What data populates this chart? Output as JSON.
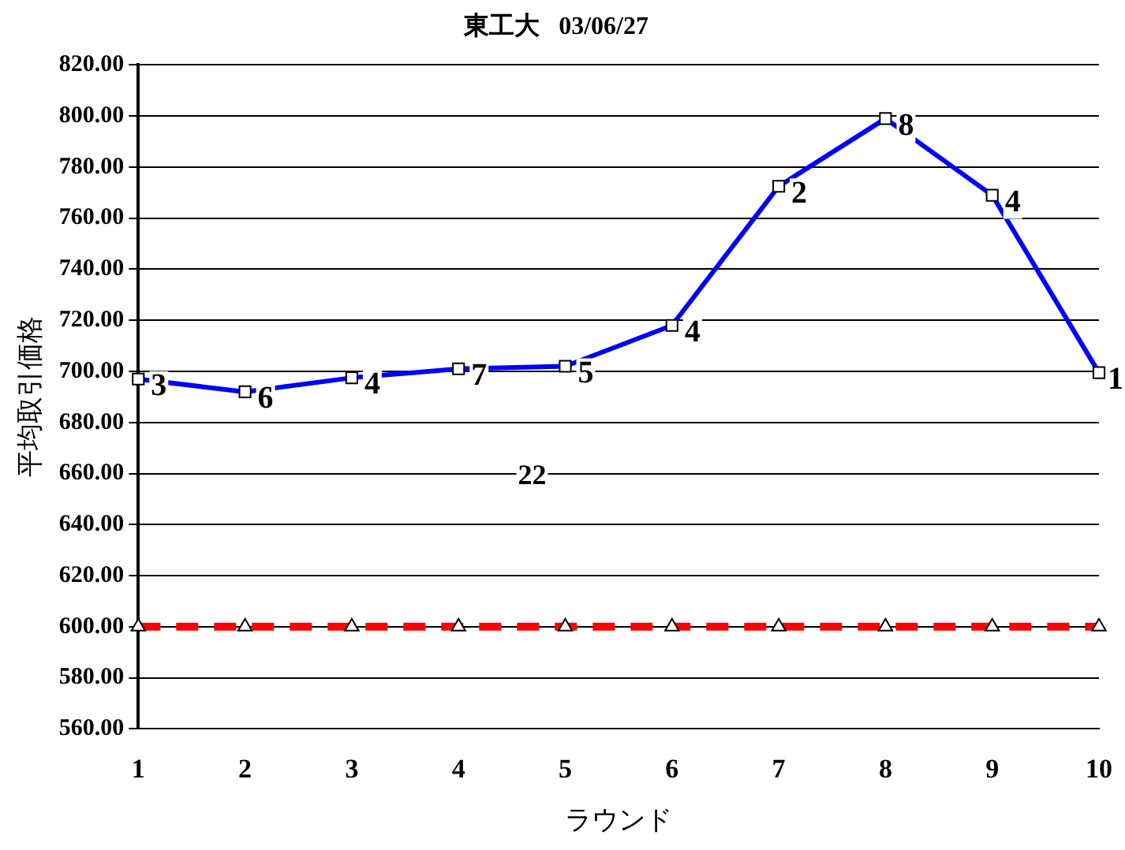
{
  "chart_data": {
    "type": "line",
    "title": "東工大   03/06/27",
    "xlabel": "ラウンド",
    "ylabel": "平均取引価格",
    "categories": [
      "1",
      "2",
      "3",
      "4",
      "5",
      "6",
      "7",
      "8",
      "9",
      "10"
    ],
    "series": [
      {
        "color": "#0000ff",
        "marker": "square",
        "line_style": "solid",
        "values": [
          697,
          692,
          697.5,
          701,
          702,
          718,
          772.5,
          799,
          769,
          699.5
        ]
      },
      {
        "color": "#ff0000",
        "marker": "triangle",
        "line_style": "dashed",
        "values": [
          600,
          600,
          600,
          600,
          600,
          600,
          600,
          600,
          600,
          600
        ]
      }
    ],
    "ylim": [
      560,
      820
    ],
    "yticks": [
      {
        "value": 560,
        "label": "560.00"
      },
      {
        "value": 580,
        "label": "580.00"
      },
      {
        "value": 600,
        "label": "600.00"
      },
      {
        "value": 620,
        "label": "620.00"
      },
      {
        "value": 640,
        "label": "640.00"
      },
      {
        "value": 660,
        "label": "660.00"
      },
      {
        "value": 680,
        "label": "680.00"
      },
      {
        "value": 700,
        "label": "700.00"
      },
      {
        "value": 720,
        "label": "720.00"
      },
      {
        "value": 740,
        "label": "740.00"
      },
      {
        "value": 760,
        "label": "760.00"
      },
      {
        "value": 780,
        "label": "780.00"
      },
      {
        "value": 800,
        "label": "800.00"
      },
      {
        "value": 820,
        "label": "820.00"
      }
    ],
    "annotations": [
      "22",
      {
        "text": "3",
        "x": "1",
        "y": 697
      },
      {
        "text": "6",
        "x": "2",
        "y": 692
      },
      {
        "text": "4",
        "x": "3",
        "y": 697.5
      },
      {
        "text": "7",
        "x": "4",
        "y": 701
      },
      {
        "text": "5",
        "x": "5",
        "y": 702
      },
      {
        "text": "4",
        "x": "6",
        "y": 718
      },
      {
        "text": "2",
        "x": "7",
        "y": 772.5
      },
      {
        "text": "8",
        "x": "8",
        "y": 799
      },
      {
        "text": "4",
        "x": "9",
        "y": 769
      },
      {
        "text": "1",
        "x": "10",
        "y": 699.5
      }
    ],
    "grid": "y",
    "legend": false
  }
}
